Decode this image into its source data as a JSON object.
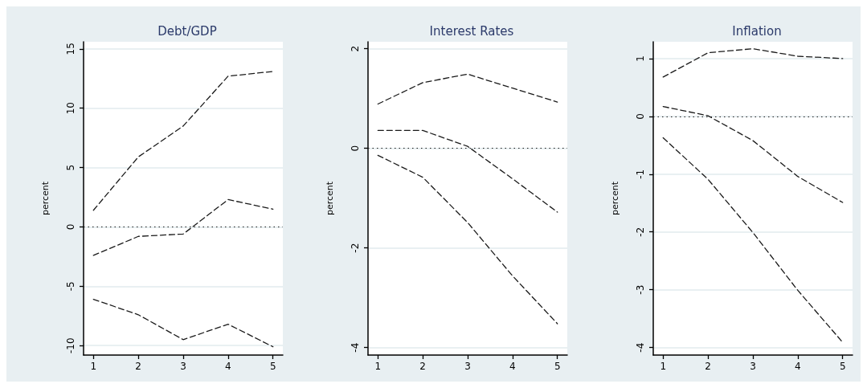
{
  "chart_data": [
    {
      "type": "line",
      "title": "Debt/GDP",
      "ylabel": "percent",
      "x": [
        1,
        2,
        3,
        4,
        5
      ],
      "xlim": [
        0.78,
        5.22
      ],
      "xticks": [
        1,
        2,
        3,
        4,
        5
      ],
      "ylim": [
        -10.8,
        15.6
      ],
      "yticks": [
        -10,
        -5,
        0,
        5,
        10,
        15
      ],
      "grid": "y",
      "line_style": "dashed",
      "series": [
        {
          "color": "#1a1a1a",
          "values": [
            1.4,
            5.9,
            8.5,
            12.7,
            13.1
          ]
        },
        {
          "color": "#1a1a1a",
          "values": [
            -2.4,
            -0.8,
            -0.6,
            2.3,
            1.5
          ]
        },
        {
          "color": "#1a1a1a",
          "values": [
            -6.1,
            -7.4,
            -9.5,
            -8.2,
            -10.1
          ]
        }
      ],
      "ref_lines": [
        {
          "axis": "y",
          "value": 0,
          "line_style": "dotted",
          "color": "#1a1a1a"
        }
      ]
    },
    {
      "type": "line",
      "title": "Interest Rates",
      "ylabel": "percent",
      "x": [
        1,
        2,
        3,
        4,
        5
      ],
      "xlim": [
        0.78,
        5.22
      ],
      "xticks": [
        1,
        2,
        3,
        4,
        5
      ],
      "ylim": [
        -4.15,
        2.14
      ],
      "yticks": [
        -4,
        -2,
        0,
        2
      ],
      "grid": "y",
      "line_style": "dashed",
      "series": [
        {
          "color": "#1a1a1a",
          "values": [
            0.89,
            1.32,
            1.49,
            1.21,
            0.93
          ]
        },
        {
          "color": "#1a1a1a",
          "values": [
            0.36,
            0.36,
            0.04,
            -0.61,
            -1.28
          ]
        },
        {
          "color": "#1a1a1a",
          "values": [
            -0.14,
            -0.58,
            -1.49,
            -2.56,
            -3.52
          ]
        }
      ],
      "ref_lines": [
        {
          "axis": "y",
          "value": 0,
          "line_style": "dotted",
          "color": "#1a1a1a"
        }
      ]
    },
    {
      "type": "line",
      "title": "Inflation",
      "ylabel": "percent",
      "x": [
        1,
        2,
        3,
        4,
        5
      ],
      "xlim": [
        0.78,
        5.22
      ],
      "xticks": [
        1,
        2,
        3,
        4,
        5
      ],
      "ylim": [
        -4.13,
        1.29
      ],
      "yticks": [
        -4,
        -3,
        -2,
        -1,
        0,
        1
      ],
      "grid": "y",
      "line_style": "dashed",
      "series": [
        {
          "color": "#1a1a1a",
          "values": [
            0.68,
            1.1,
            1.17,
            1.04,
            1.0
          ]
        },
        {
          "color": "#1a1a1a",
          "values": [
            0.17,
            0.01,
            -0.42,
            -1.04,
            -1.49
          ]
        },
        {
          "color": "#1a1a1a",
          "values": [
            -0.37,
            -1.09,
            -2.01,
            -3.01,
            -3.91
          ]
        }
      ],
      "ref_lines": [
        {
          "axis": "y",
          "value": 0,
          "line_style": "dotted",
          "color": "#1a1a1a"
        }
      ]
    }
  ]
}
